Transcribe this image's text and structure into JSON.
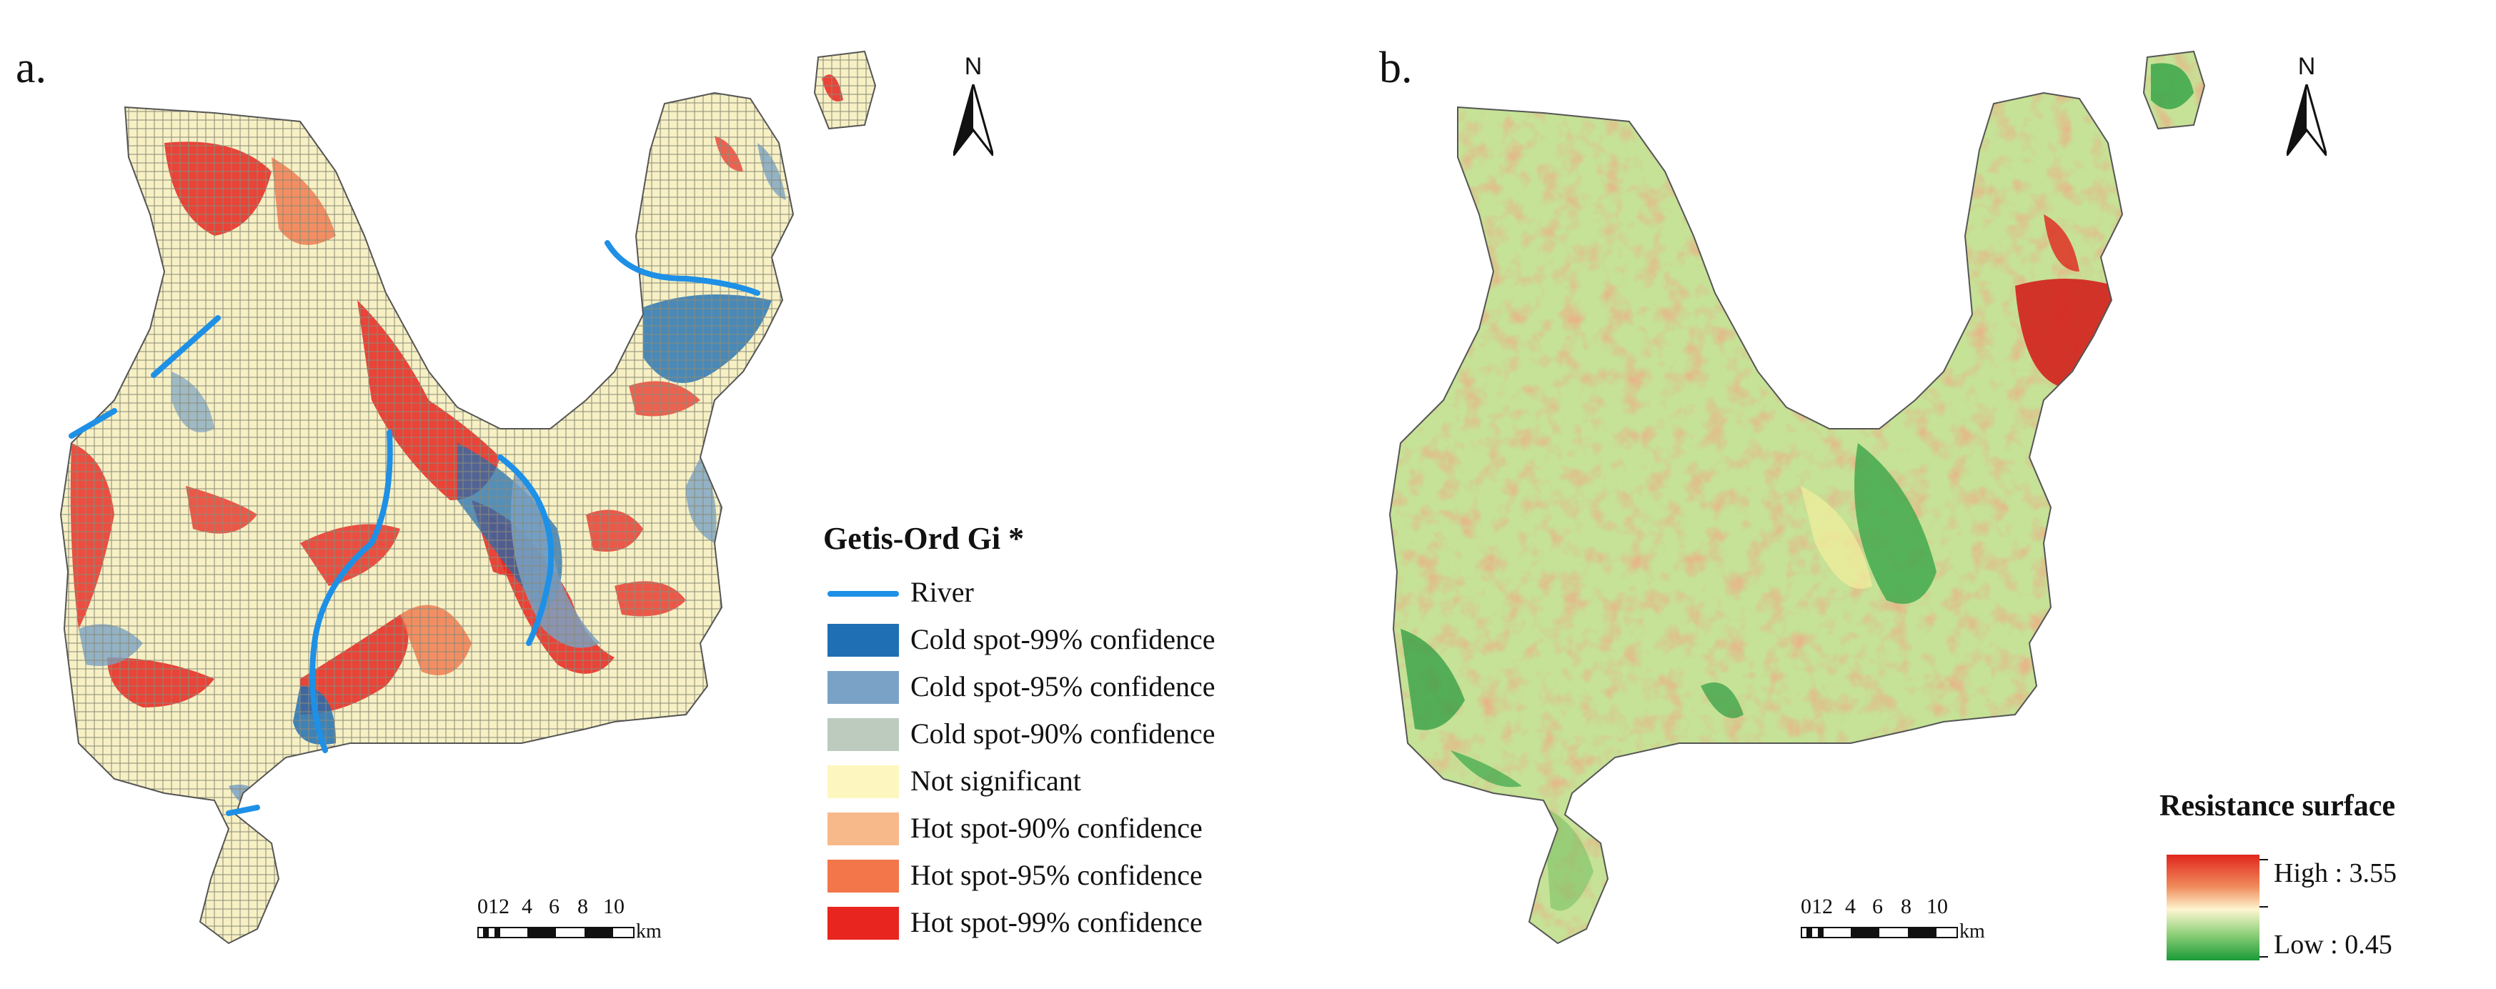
{
  "panels": {
    "a": {
      "label": "a.",
      "north_letter": "N",
      "scale": {
        "ticks": [
          "0",
          "1",
          "2",
          "4",
          "6",
          "8",
          "10"
        ],
        "unit": "km"
      },
      "legend": {
        "title": "Getis-Ord Gi *",
        "items": [
          {
            "label": "River",
            "color": "#1e90e6",
            "kind": "line"
          },
          {
            "label": "Cold spot-99% confidence",
            "color": "#1f6fb4",
            "kind": "fill"
          },
          {
            "label": "Cold spot-95% confidence",
            "color": "#7aa2c6",
            "kind": "fill"
          },
          {
            "label": "Cold spot-90% confidence",
            "color": "#bccbbd",
            "kind": "fill"
          },
          {
            "label": "Not significant",
            "color": "#fdf7bf",
            "kind": "fill"
          },
          {
            "label": "Hot spot-90% confidence",
            "color": "#f8b98a",
            "kind": "fill"
          },
          {
            "label": "Hot spot-95% confidence",
            "color": "#f2764a",
            "kind": "fill"
          },
          {
            "label": "Hot spot-99% confidence",
            "color": "#e8251f",
            "kind": "fill"
          }
        ]
      }
    },
    "b": {
      "label": "b.",
      "north_letter": "N",
      "scale": {
        "ticks": [
          "0",
          "1",
          "2",
          "4",
          "6",
          "8",
          "10"
        ],
        "unit": "km"
      },
      "legend": {
        "title": "Resistance surface",
        "high_label": "High : 3.55",
        "low_label": "Low : 0.45",
        "high_color": "#e0261e",
        "low_color": "#1a9a38"
      }
    }
  }
}
